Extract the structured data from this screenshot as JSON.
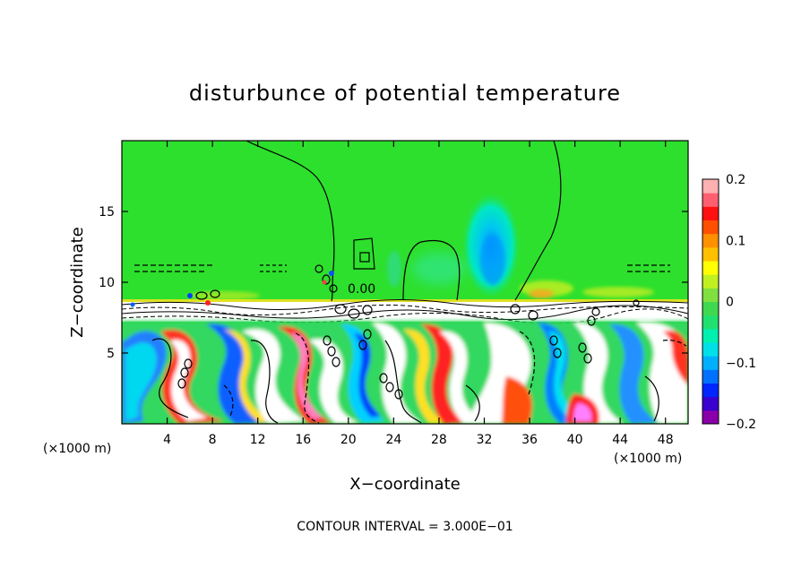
{
  "chart_data": {
    "type": "heatmap",
    "title": "disturbunce of potential temperature",
    "xlabel": "X−coordinate",
    "ylabel": "Z−coordinate",
    "x_unit": "(×1000 m)",
    "y_unit": "(×1000 m)",
    "xlim": [
      0,
      50
    ],
    "ylim": [
      0,
      20
    ],
    "x_ticks": [
      4,
      8,
      12,
      16,
      20,
      24,
      28,
      32,
      36,
      40,
      44,
      48
    ],
    "x_tick_labels": [
      "4",
      "8",
      "12",
      "16",
      "20",
      "24",
      "28",
      "32",
      "36",
      "40",
      "44",
      "48"
    ],
    "y_ticks": [
      5,
      10,
      15
    ],
    "y_tick_labels": [
      "5",
      "10",
      "15"
    ],
    "contour_interval_text": "CONTOUR INTERVAL = 3.000E−01",
    "contour_label": "0.00",
    "colorbar": {
      "min": -0.2,
      "max": 0.2,
      "ticks": [
        0.2,
        0.1,
        0,
        -0.1,
        -0.2
      ],
      "tick_labels": [
        "0.2",
        "0.1",
        "0",
        "−0.1",
        "−0.2"
      ],
      "colors": [
        "#8a00a8",
        "#3a00d0",
        "#0026ff",
        "#0070ff",
        "#00b0ff",
        "#00e0e8",
        "#00f0b0",
        "#20e070",
        "#40d850",
        "#80e040",
        "#c0f020",
        "#ffff00",
        "#ffc000",
        "#ff9000",
        "#ff5000",
        "#ff1010",
        "#ff6070",
        "#ffb0b0"
      ]
    },
    "background_color": "#2de02d",
    "grid": false
  }
}
